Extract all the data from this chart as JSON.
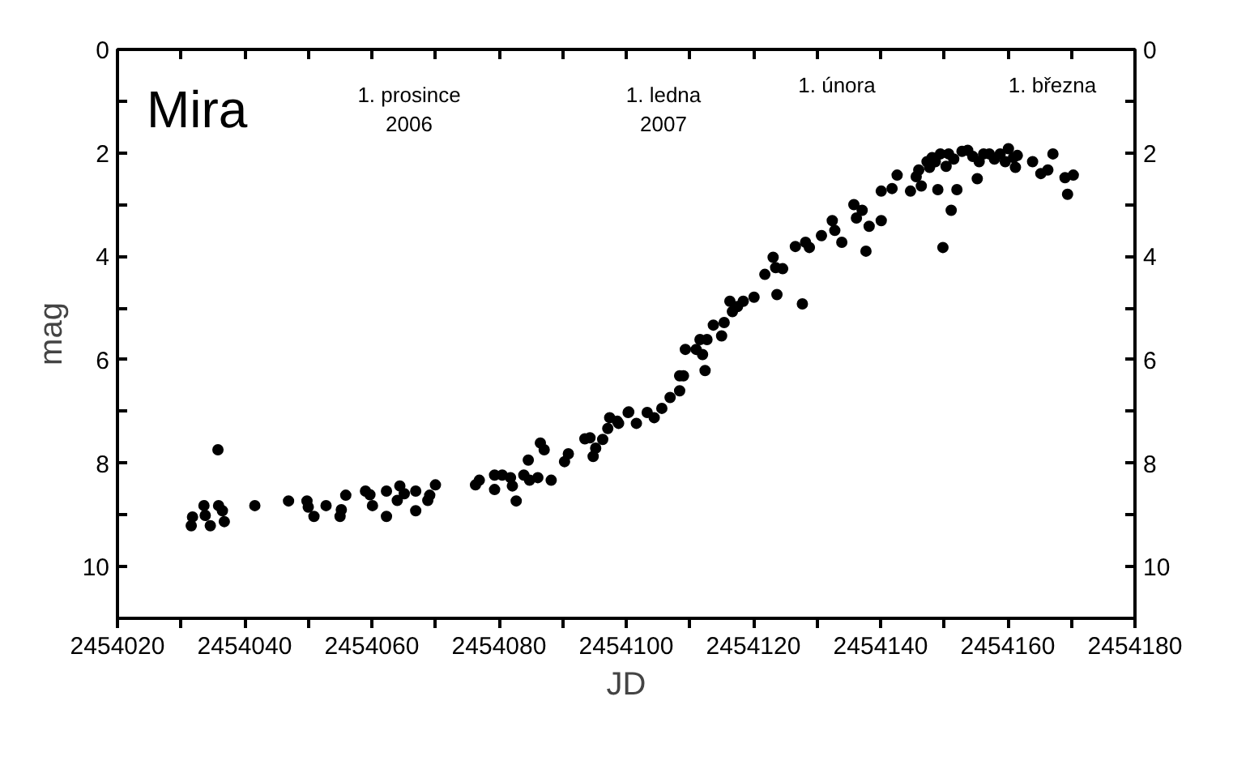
{
  "chart_data": {
    "type": "scatter",
    "title": "Mira",
    "xlabel": "JD",
    "ylabel": "mag",
    "marker": "circle",
    "grid": false,
    "xlim": [
      2454020,
      2454180
    ],
    "xticks": [
      2454020,
      {
        "value": 2454030,
        "label": null
      },
      2454040,
      {
        "value": 2454050,
        "label": null
      },
      2454060,
      {
        "value": 2454070,
        "label": null
      },
      2454080,
      {
        "value": 2454090,
        "label": null
      },
      2454100,
      {
        "value": 2454110,
        "label": null
      },
      2454120,
      {
        "value": 2454130,
        "label": null
      },
      2454140,
      {
        "value": 2454150,
        "label": null
      },
      2454160,
      {
        "value": 2454170,
        "label": null
      },
      2454180
    ],
    "ylim": [
      11,
      0
    ],
    "yticks": [
      0,
      {
        "value": 1,
        "label": null
      },
      2,
      {
        "value": 3,
        "label": null
      },
      4,
      {
        "value": 5,
        "label": null
      },
      6,
      {
        "value": 7,
        "label": null
      },
      8,
      {
        "value": 9,
        "label": null
      },
      10
    ],
    "y2lim": [
      11,
      0
    ],
    "y2ticks": [
      0,
      {
        "value": 1,
        "label": null
      },
      2,
      {
        "value": 3,
        "label": null
      },
      4,
      {
        "value": 5,
        "label": null
      },
      6,
      {
        "value": 7,
        "label": null
      },
      8,
      {
        "value": 9,
        "label": null
      },
      10
    ],
    "annotations": [
      "1. prosince\n2006",
      "1. ledna\n2007",
      "1. února",
      "1. března"
    ],
    "series": [
      {
        "color": "#000000",
        "x": [
          2454031.6,
          2454031.8,
          2454033.6,
          2454033.8,
          2454034.6,
          2454035.9,
          2454036.8,
          2454036.5,
          2454035.8,
          2454041.6,
          2454046.9,
          2454049.8,
          2454050.0,
          2454050.9,
          2454052.8,
          2454055.0,
          2454055.2,
          2454055.9,
          2454059.0,
          2454060.1,
          2454059.7,
          2454062.3,
          2454062.3,
          2454064.0,
          2454064.4,
          2454065.1,
          2454066.9,
          2454066.9,
          2454068.8,
          2454069.1,
          2454070.0,
          2454076.3,
          2454076.9,
          2454079.3,
          2454079.3,
          2454080.5,
          2454081.8,
          2454082.1,
          2454082.7,
          2454083.9,
          2454084.6,
          2454084.8,
          2454086.1,
          2454086.5,
          2454087.1,
          2454088.2,
          2454090.3,
          2454090.9,
          2454093.5,
          2454094.3,
          2454094.8,
          2454095.2,
          2454096.3,
          2454097.1,
          2454097.4,
          2454098.6,
          2454100.4,
          2454098.8,
          2454100.3,
          2454101.6,
          2454103.3,
          2454104.4,
          2454105.6,
          2454106.9,
          2454108.4,
          2454108.4,
          2454109.0,
          2454109.3,
          2454111.0,
          2454111.6,
          2454112.0,
          2454112.7,
          2454112.4,
          2454113.7,
          2454115.0,
          2454115.4,
          2454116.3,
          2454116.7,
          2454117.5,
          2454118.4,
          2454120.1,
          2454121.8,
          2454123.1,
          2454123.5,
          2454123.7,
          2454124.6,
          2454126.6,
          2454127.7,
          2454128.2,
          2454128.8,
          2454130.7,
          2454132.4,
          2454132.8,
          2454133.9,
          2454135.8,
          2454136.2,
          2454137.1,
          2454137.7,
          2454138.2,
          2454140.1,
          2454140.1,
          2454141.8,
          2454142.6,
          2454144.7,
          2454145.6,
          2454146.4,
          2454147.7,
          2454148.6,
          2454149.4,
          2454149.0,
          2454149.8,
          2454150.3,
          2454151.1,
          2454152.0,
          2454152.8,
          2454154.5,
          2454155.2,
          2454156.2,
          2454157.9,
          2454158.8,
          2454160.1,
          2454161.2,
          2454161.5,
          2454163.9,
          2454165.2,
          2454166.3,
          2454167.1,
          2454169.0,
          2454169.4,
          2454170.3,
          2454146.0,
          2454147.3,
          2454148.1,
          2454150.7,
          2454151.5,
          2454153.7,
          2454155.5,
          2454157.1,
          2454159.6,
          2454160.9
        ],
        "values": [
          9.21,
          9.04,
          8.82,
          9.01,
          9.21,
          8.82,
          9.13,
          8.92,
          7.74,
          8.82,
          8.73,
          8.73,
          8.85,
          9.03,
          8.82,
          9.03,
          8.9,
          8.62,
          8.54,
          8.82,
          8.61,
          9.03,
          8.54,
          8.72,
          8.44,
          8.59,
          8.92,
          8.54,
          8.72,
          8.62,
          8.42,
          8.42,
          8.33,
          8.51,
          8.23,
          8.23,
          8.28,
          8.44,
          8.73,
          8.23,
          7.94,
          8.33,
          8.28,
          7.61,
          7.74,
          8.33,
          7.97,
          7.82,
          7.53,
          7.51,
          7.87,
          7.71,
          7.54,
          7.33,
          7.12,
          7.19,
          7.01,
          7.23,
          7.02,
          7.23,
          7.02,
          7.12,
          6.94,
          6.73,
          6.6,
          6.31,
          6.31,
          5.8,
          5.8,
          5.61,
          5.9,
          5.61,
          6.21,
          5.33,
          5.54,
          5.28,
          4.87,
          5.07,
          4.97,
          4.87,
          4.79,
          4.35,
          4.02,
          4.22,
          4.74,
          4.24,
          3.81,
          4.92,
          3.73,
          3.83,
          3.6,
          3.31,
          3.5,
          3.73,
          3.0,
          3.26,
          3.11,
          3.9,
          3.42,
          3.31,
          2.74,
          2.69,
          2.43,
          2.74,
          2.46,
          2.64,
          2.28,
          2.17,
          2.02,
          2.71,
          3.83,
          2.26,
          3.11,
          2.71,
          1.97,
          2.07,
          2.5,
          2.02,
          2.12,
          2.02,
          1.92,
          2.28,
          2.05,
          2.17,
          2.4,
          2.33,
          2.02,
          2.48,
          2.8,
          2.43,
          2.33,
          2.17,
          2.09,
          2.02,
          2.12,
          1.95,
          2.17,
          2.02,
          2.17,
          2.09
        ]
      }
    ]
  }
}
